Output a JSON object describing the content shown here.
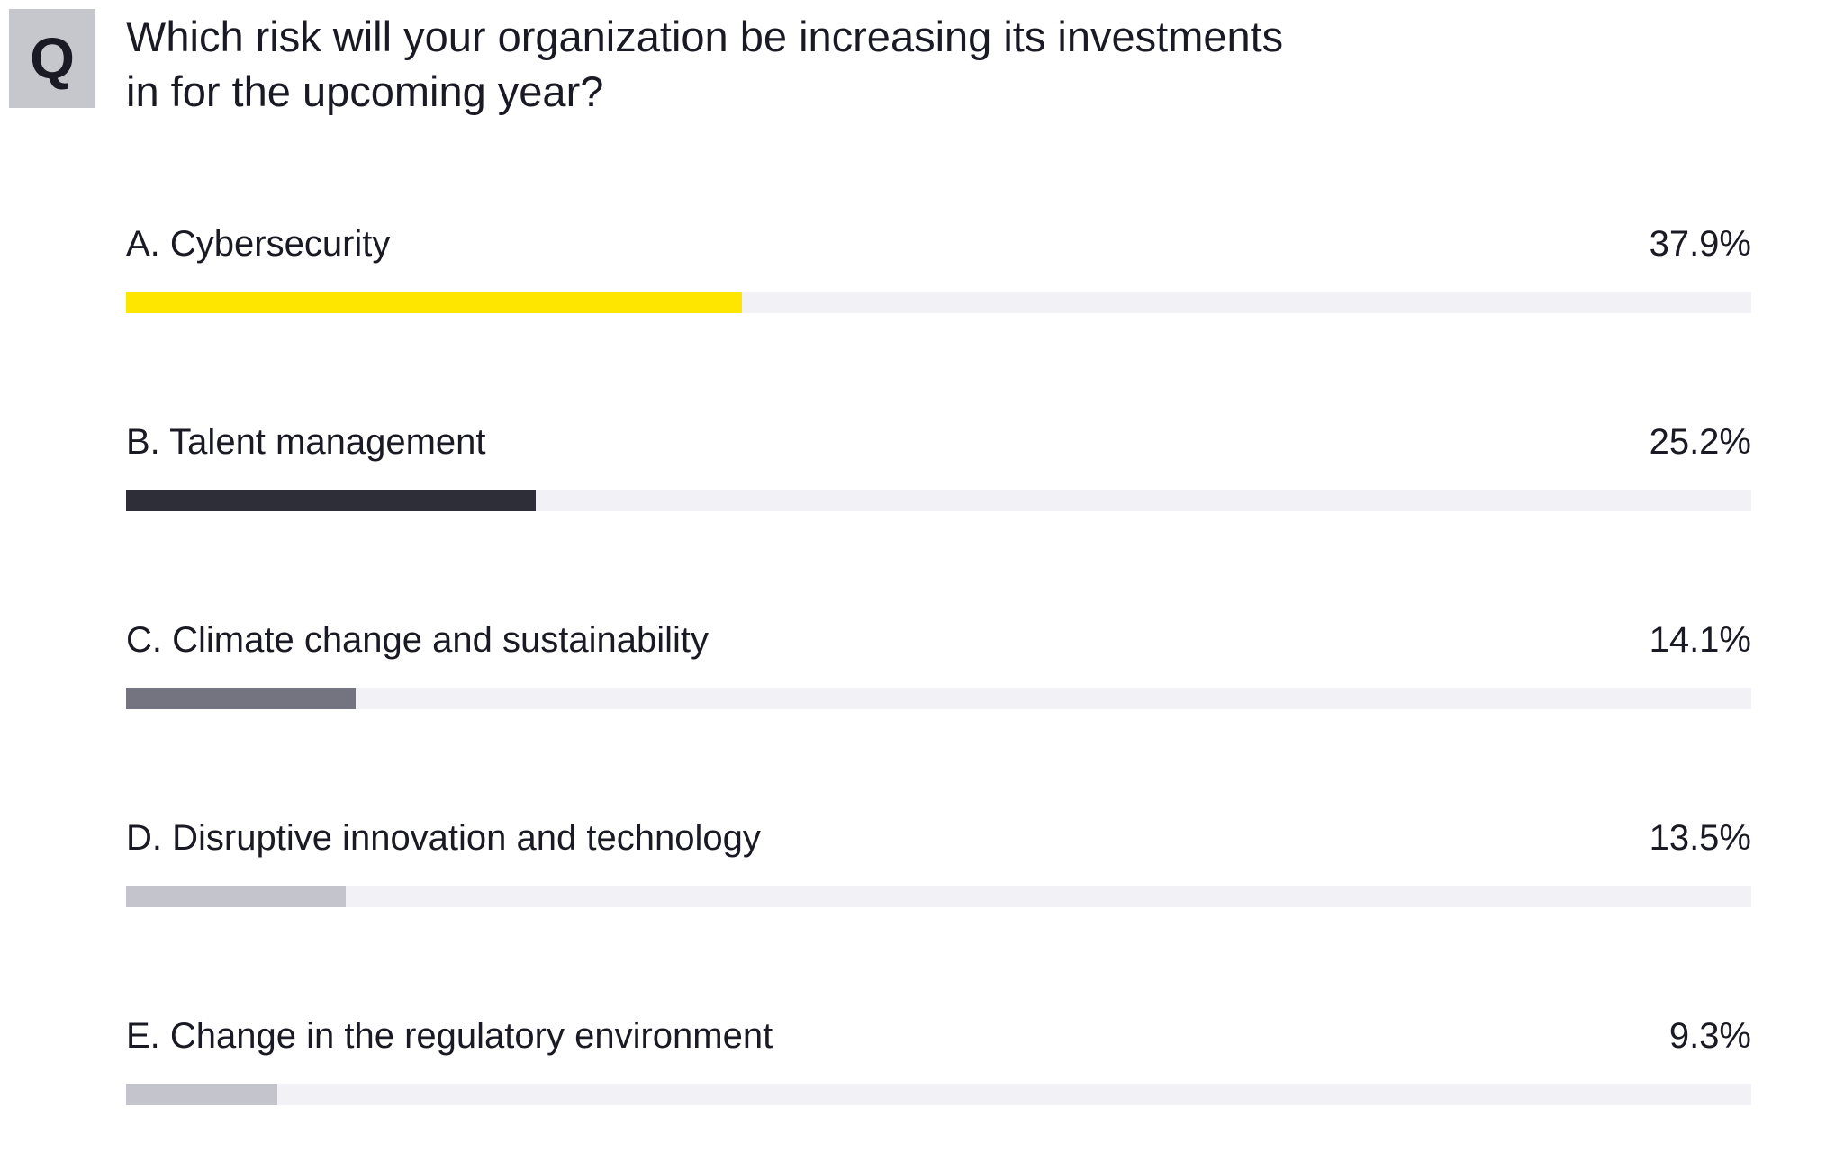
{
  "badge": {
    "label": "Q"
  },
  "title": {
    "line1": "Which risk will your organization be increasing its investments",
    "line2": "in for the upcoming year?"
  },
  "chart_data": {
    "type": "bar",
    "orientation": "horizontal",
    "title": "Which risk will your organization be increasing its investments in for the upcoming year?",
    "categories": [
      "A. Cybersecurity",
      "B. Talent management",
      "C. Climate change and sustainability",
      "D. Disruptive innovation and technology",
      "E. Change in the regulatory environment"
    ],
    "values": [
      37.9,
      25.2,
      14.1,
      13.5,
      9.3
    ],
    "value_labels": [
      "37.9%",
      "25.2%",
      "14.1%",
      "13.5%",
      "9.3%"
    ],
    "xlim": [
      0,
      100
    ],
    "bar_colors": [
      "#ffe600",
      "#2e2e38",
      "#747480",
      "#c4c4cd",
      "#c4c4cd"
    ],
    "track_color": "#f2f2f6",
    "legend": "none",
    "grid": "off"
  }
}
